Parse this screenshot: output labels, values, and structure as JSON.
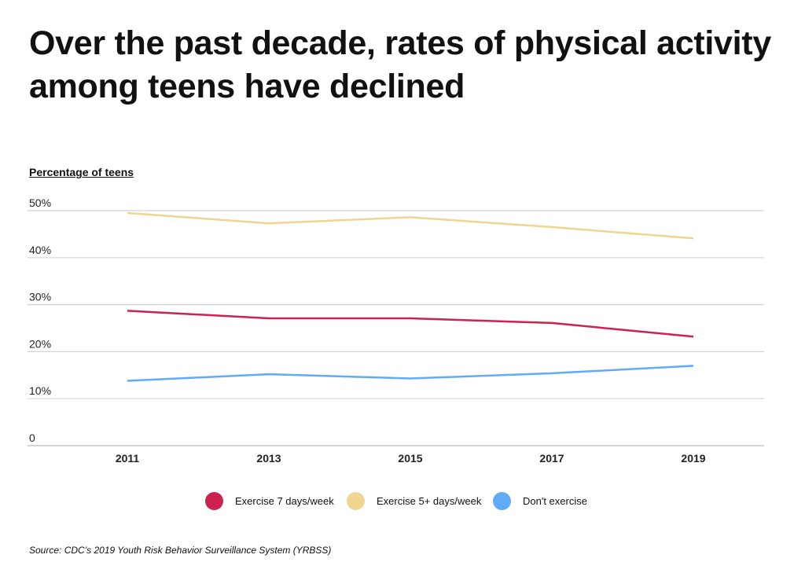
{
  "title": "Over the past decade, rates of physical activity among teens have declined",
  "source": "Source:  CDC’s 2019 Youth Risk Behavior Surveillance System (YRBSS)",
  "chart_data": {
    "type": "line",
    "title": "Over the past decade, rates of physical activity among teens have declined",
    "ylabel": "Percentage of teens",
    "xlabel": "",
    "x": [
      "2011",
      "2013",
      "2015",
      "2017",
      "2019"
    ],
    "ylim": [
      0,
      50
    ],
    "yticks": [
      0,
      10,
      20,
      30,
      40,
      50
    ],
    "ytick_labels": [
      "0",
      "10%",
      "20%",
      "30%",
      "40%",
      "50%"
    ],
    "grid": true,
    "legend": "bottom",
    "series": [
      {
        "name": "Exercise 7 days/week",
        "color": "#cc2250",
        "values": [
          28.7,
          27.1,
          27.1,
          26.1,
          23.2
        ]
      },
      {
        "name": "Exercise 5+ days/week",
        "color": "#f0d590",
        "values": [
          49.5,
          47.3,
          48.6,
          46.5,
          44.1
        ]
      },
      {
        "name": "Don't exercise",
        "color": "#60abf8",
        "values": [
          13.8,
          15.2,
          14.3,
          15.4,
          17.0
        ]
      }
    ]
  }
}
